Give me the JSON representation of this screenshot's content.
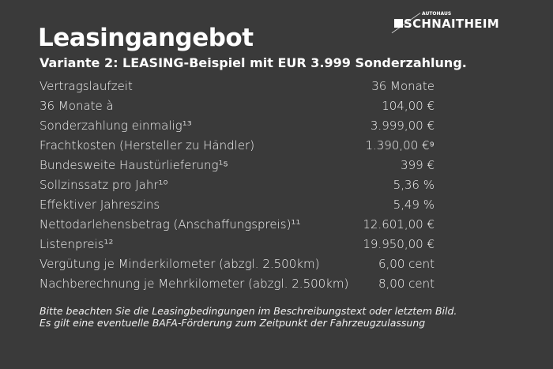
{
  "logo": {
    "small": "AUTOHAUS",
    "big": "SCHNAITHEIM"
  },
  "subtitle": "Variante 2: LEASING-Beispiel mit EUR 3.999 Sonderzahlung.",
  "title": "Leasingangebot",
  "rows": [
    {
      "label": "Vertragslaufzeit",
      "value": "36 Monate"
    },
    {
      "label": "36 Monate à",
      "value": "104,00 €"
    },
    {
      "label": "Sonderzahlung einmalig¹³",
      "value": "3.999,00 €"
    },
    {
      "label": "Frachtkosten (Hersteller zu Händler)",
      "value": "1.390,00 €⁹"
    },
    {
      "label": "Bundesweite Haustürlieferung¹⁵",
      "value": "399 €"
    },
    {
      "label": "Sollzinssatz pro Jahr¹⁰",
      "value": "5,36 %"
    },
    {
      "label": "Effektiver Jahreszins",
      "value": "5,49 %"
    },
    {
      "label": "Nettodarlehensbetrag (Anschaffungspreis)¹¹",
      "value": "12.601,00 €"
    },
    {
      "label": "Listenpreis¹²",
      "value": "19.950,00 €"
    },
    {
      "label": "Vergütung je Minderkilometer (abzgl. 2.500km)",
      "value": "6,00 cent"
    },
    {
      "label": "Nachberechnung je Mehrkilometer (abzgl. 2.500km)",
      "value": "8,00 cent"
    }
  ],
  "footnote": [
    "Bitte beachten Sie die Leasingbedingungen im Beschreibungstext oder letztem Bild.",
    "Es gilt eine eventuelle BAFA-Förderung zum Zeitpunkt der Fahrzeugzulassung"
  ]
}
